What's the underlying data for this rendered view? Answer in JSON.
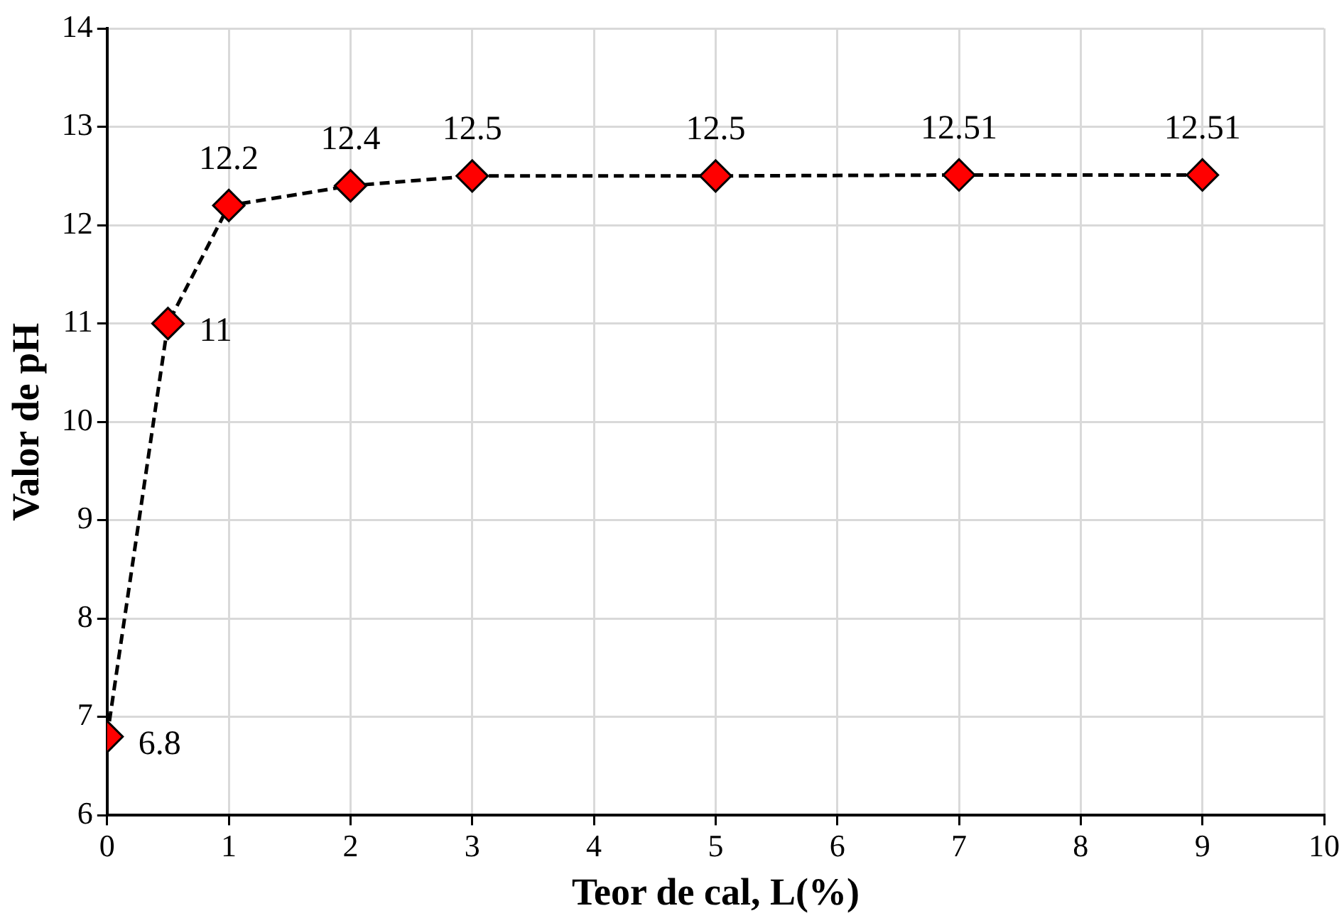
{
  "chart_data": {
    "type": "line",
    "xlabel": "Teor de cal, L(%)",
    "ylabel": "Valor de pH",
    "x": [
      0,
      0.5,
      1,
      2,
      3,
      5,
      7,
      9
    ],
    "series": [
      {
        "color": "#ff0000",
        "values": [
          6.8,
          11,
          12.2,
          12.4,
          12.5,
          12.5,
          12.51,
          12.51
        ]
      }
    ],
    "xlim": [
      0,
      10
    ],
    "xticks": [
      0,
      1,
      2,
      3,
      4,
      5,
      6,
      7,
      8,
      9,
      10
    ],
    "ylim": [
      6,
      14
    ],
    "yticks": [
      6,
      7,
      8,
      9,
      10,
      11,
      12,
      13,
      14
    ],
    "grid": true,
    "legend": false,
    "marker": "diamond",
    "line_style": "dashed",
    "data_labels": true
  }
}
